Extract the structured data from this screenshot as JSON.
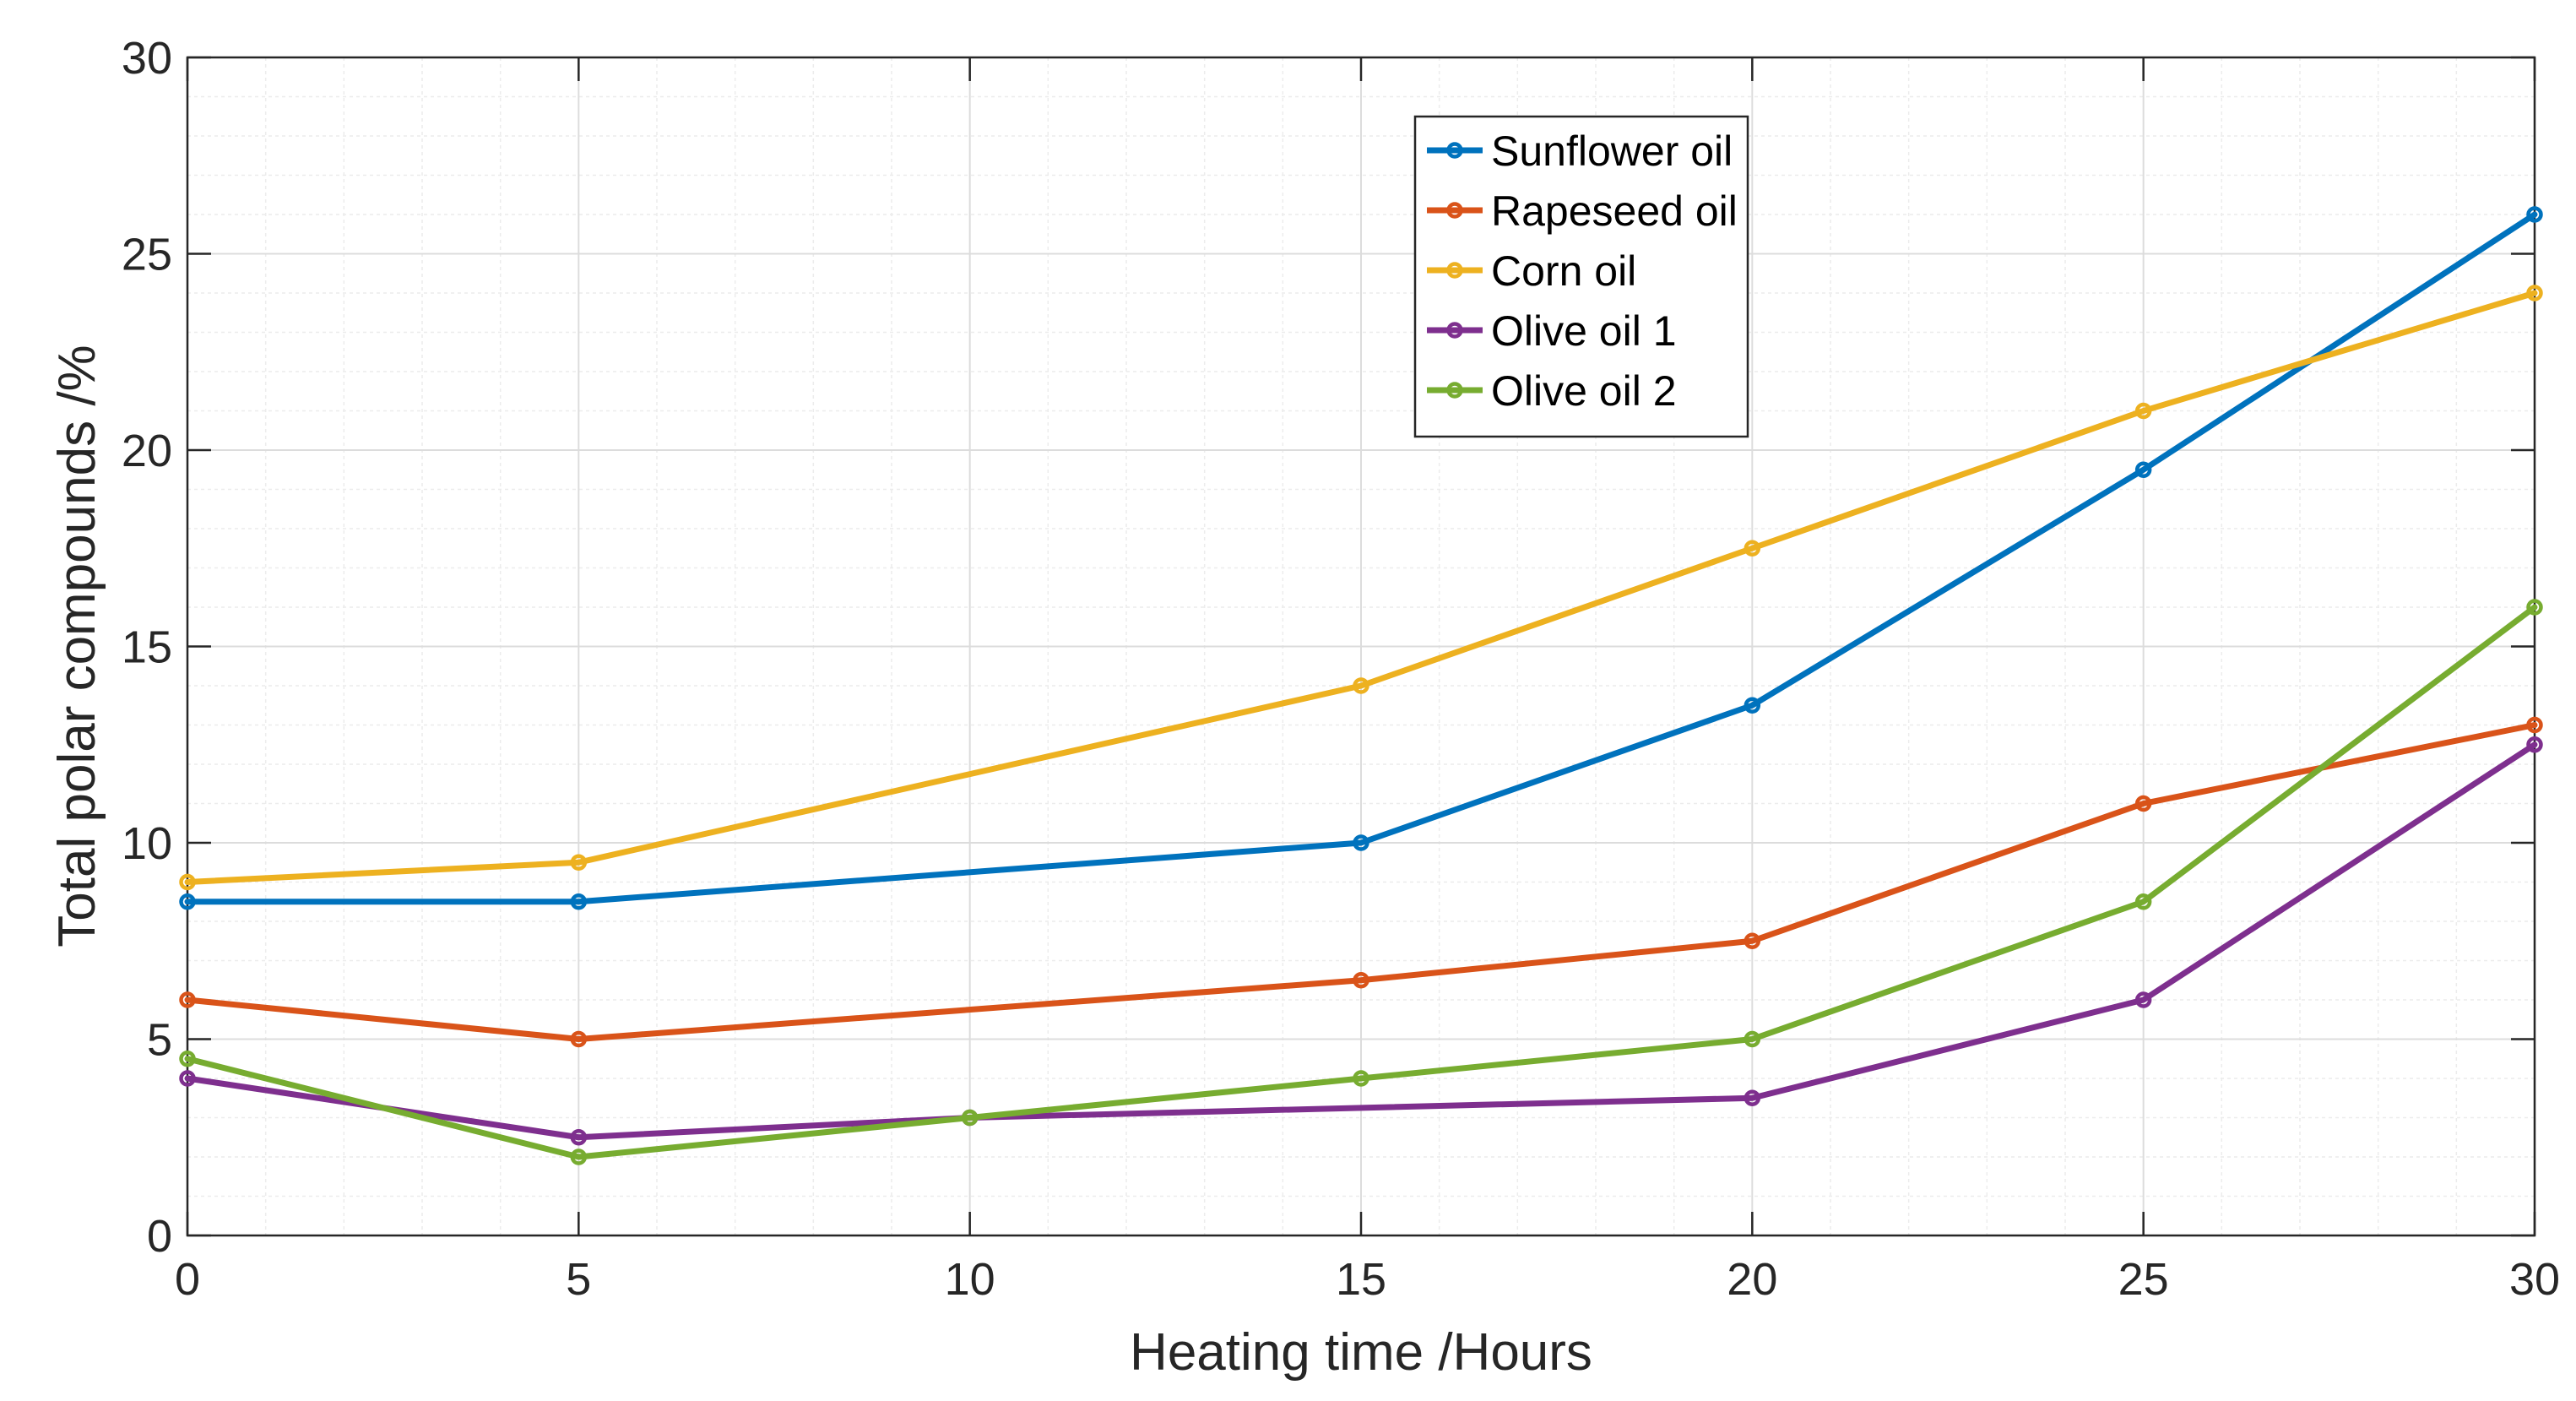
{
  "chart_data": {
    "type": "line",
    "title": "",
    "xlabel": "Heating time /Hours",
    "ylabel": "Total polar compounds /%",
    "xlim": [
      0,
      30
    ],
    "ylim": [
      0,
      30
    ],
    "xticks": [
      0,
      5,
      10,
      15,
      20,
      25,
      30
    ],
    "yticks": [
      0,
      5,
      10,
      15,
      20,
      25,
      30
    ],
    "grid": true,
    "minor_grid": true,
    "legend_position": "top-center",
    "series": [
      {
        "name": "Sunflower oil",
        "color": "#0072BD",
        "x": [
          0,
          5,
          15,
          20,
          25,
          30
        ],
        "y": [
          8.5,
          8.5,
          10,
          13.5,
          19.5,
          26
        ]
      },
      {
        "name": "Rapeseed oil",
        "color": "#D95319",
        "x": [
          0,
          5,
          15,
          20,
          25,
          30
        ],
        "y": [
          6,
          5,
          6.5,
          7.5,
          11,
          13
        ]
      },
      {
        "name": "Corn oil",
        "color": "#EDB120",
        "x": [
          0,
          5,
          15,
          20,
          25,
          30
        ],
        "y": [
          9,
          9.5,
          14,
          17.5,
          21,
          24
        ]
      },
      {
        "name": "Olive oil 1",
        "color": "#7E2F8E",
        "x": [
          0,
          5,
          10,
          20,
          25,
          30
        ],
        "y": [
          4,
          2.5,
          3,
          3.5,
          6,
          12.5
        ]
      },
      {
        "name": "Olive oil 2",
        "color": "#77AC30",
        "x": [
          0,
          5,
          10,
          15,
          20,
          25,
          30
        ],
        "y": [
          4.5,
          2,
          3,
          4,
          5,
          8.5,
          16
        ]
      }
    ]
  }
}
